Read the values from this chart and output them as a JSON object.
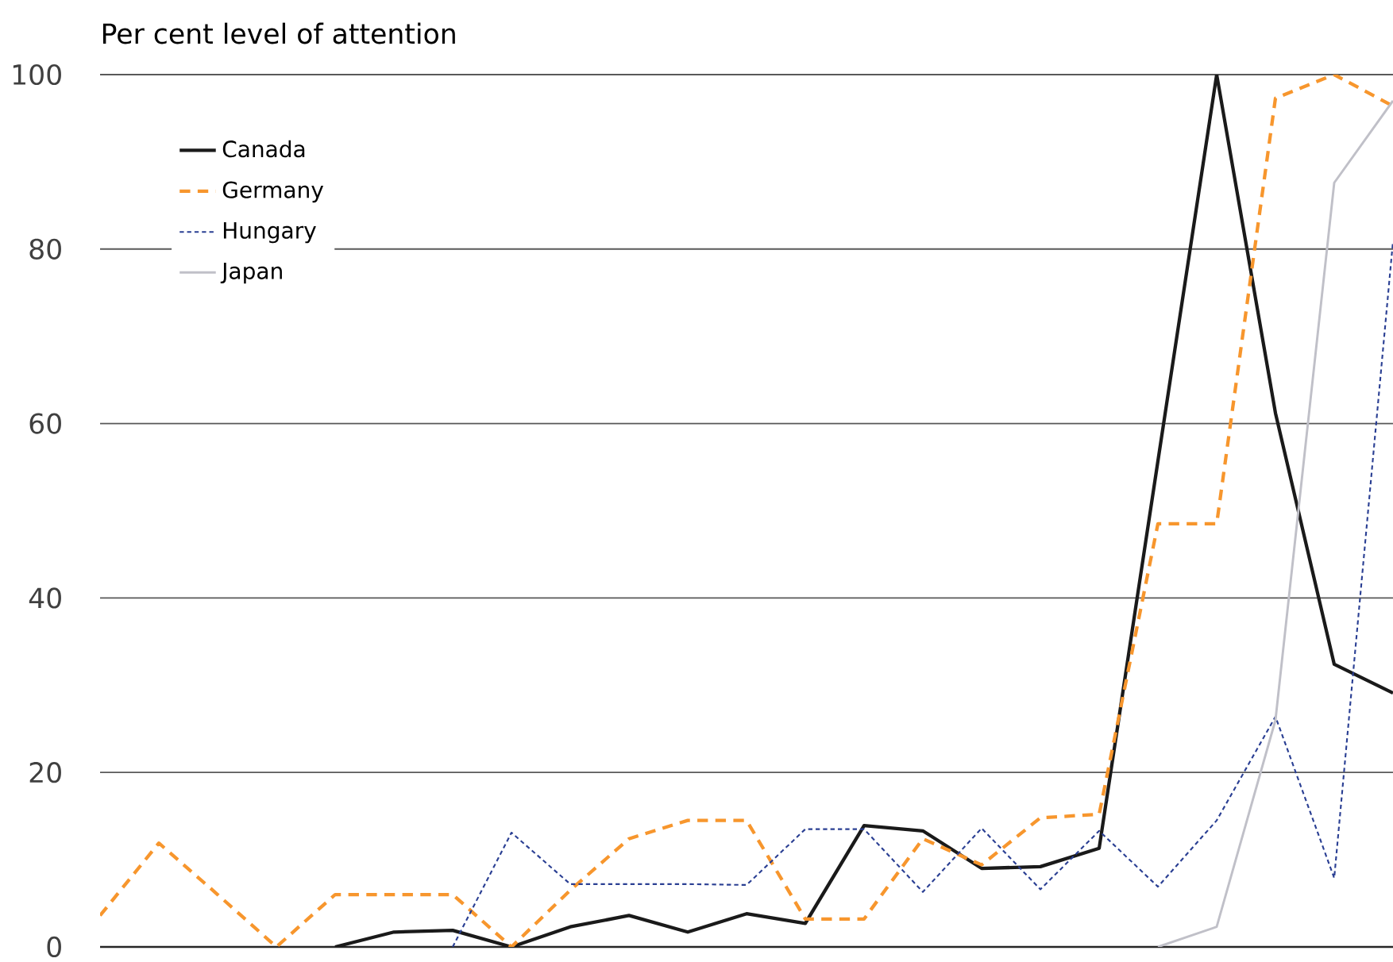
{
  "chart_data": {
    "type": "line",
    "ylabel": "Per cent level of attention",
    "categories": [
      null,
      null,
      null,
      null,
      null,
      null,
      null,
      null,
      null,
      null,
      null,
      null,
      null,
      null,
      null,
      null,
      null,
      null,
      null,
      null,
      null,
      null,
      null
    ],
    "series": [
      {
        "name": "Canada",
        "color": "#1a1a1a",
        "line_style": "solid",
        "values": [
          null,
          null,
          null,
          null,
          0,
          1.7,
          1.9,
          0,
          2.3,
          3.6,
          1.7,
          3.8,
          2.7,
          13.9,
          13.3,
          9.0,
          9.2,
          11.3,
          55.7,
          100,
          61.2,
          32.4,
          29.1
        ]
      },
      {
        "name": "Germany",
        "color": "#f7962d",
        "line_style": "dashed",
        "values": [
          3.6,
          11.9,
          6,
          0,
          6.0,
          6.0,
          6.0,
          0,
          6.5,
          12.4,
          14.5,
          14.5,
          3.2,
          3.2,
          12.4,
          9.4,
          14.8,
          15.2,
          48.5,
          48.5,
          97.3,
          100,
          96.4
        ]
      },
      {
        "name": "Hungary",
        "color": "#2a3f93",
        "line_style": "dotted",
        "values": [
          null,
          null,
          null,
          null,
          null,
          null,
          0,
          13.1,
          7.2,
          7.2,
          7.2,
          7.1,
          13.5,
          13.5,
          6.3,
          13.6,
          6.6,
          13.3,
          6.9,
          14.5,
          26.4,
          7.9,
          80.9
        ]
      },
      {
        "name": "Japan",
        "color": "#c0c0c8",
        "line_style": "solid",
        "values": [
          null,
          null,
          null,
          null,
          null,
          null,
          null,
          null,
          null,
          null,
          null,
          null,
          null,
          null,
          null,
          null,
          null,
          null,
          0,
          2.3,
          26,
          87.6,
          97
        ]
      }
    ],
    "ylim": [
      0,
      100
    ],
    "yticks": [
      0,
      20,
      40,
      60,
      80,
      100
    ],
    "grid": "y",
    "legend": "top left"
  }
}
